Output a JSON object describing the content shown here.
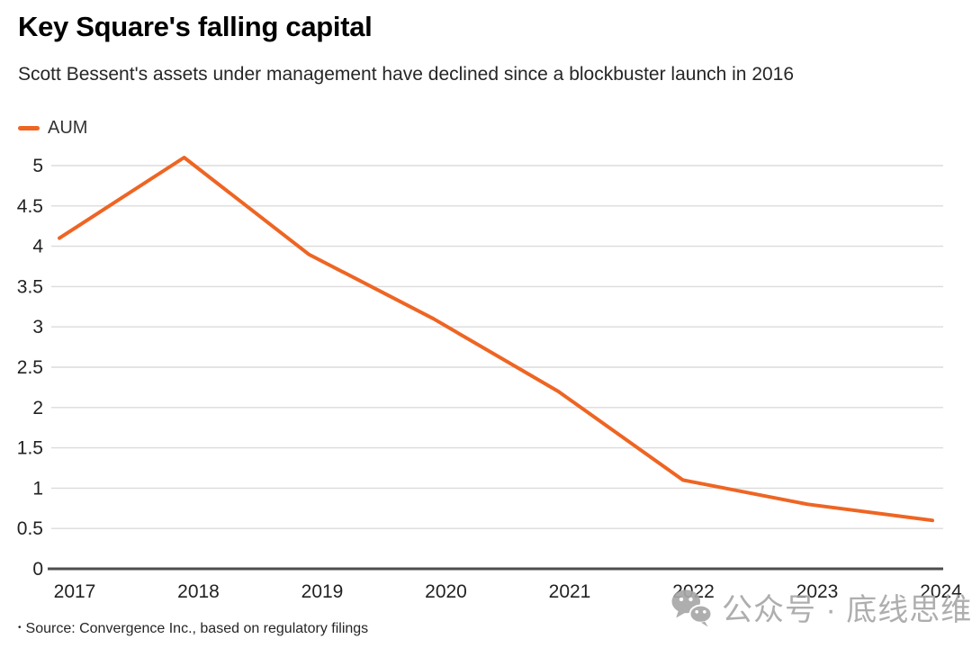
{
  "chart_data": {
    "type": "line",
    "title": "Key Square's falling capital",
    "subtitle": "Scott Bessent's assets under management have declined since a blockbuster launch in 2016",
    "legend_position": "top-left",
    "x": [
      "2017",
      "2018",
      "2019",
      "2020",
      "2021",
      "2022",
      "2023",
      "2024"
    ],
    "series": [
      {
        "name": "AUM",
        "values": [
          4.1,
          5.1,
          3.9,
          3.1,
          2.2,
          1.1,
          0.8,
          0.6
        ]
      }
    ],
    "ylim": [
      0,
      5.25
    ],
    "ytick_step": 0.5,
    "ytick_labels": [
      "0",
      "0.5",
      "1",
      "1.5",
      "2",
      "2.5",
      "3",
      "3.5",
      "4",
      "4.5",
      "5"
    ],
    "grid": true,
    "colors": {
      "line": "#ee6523",
      "grid": "#dbdbdb",
      "zero_axis": "#4d4d4d",
      "tick_label": "#222222"
    }
  },
  "source": {
    "bullet": "•",
    "text": "Source: Convergence Inc., based on regulatory filings"
  },
  "watermark": {
    "icon": "wechat-icon",
    "text": "公众号 · 底线思维",
    "color": "#a8a8a8"
  }
}
